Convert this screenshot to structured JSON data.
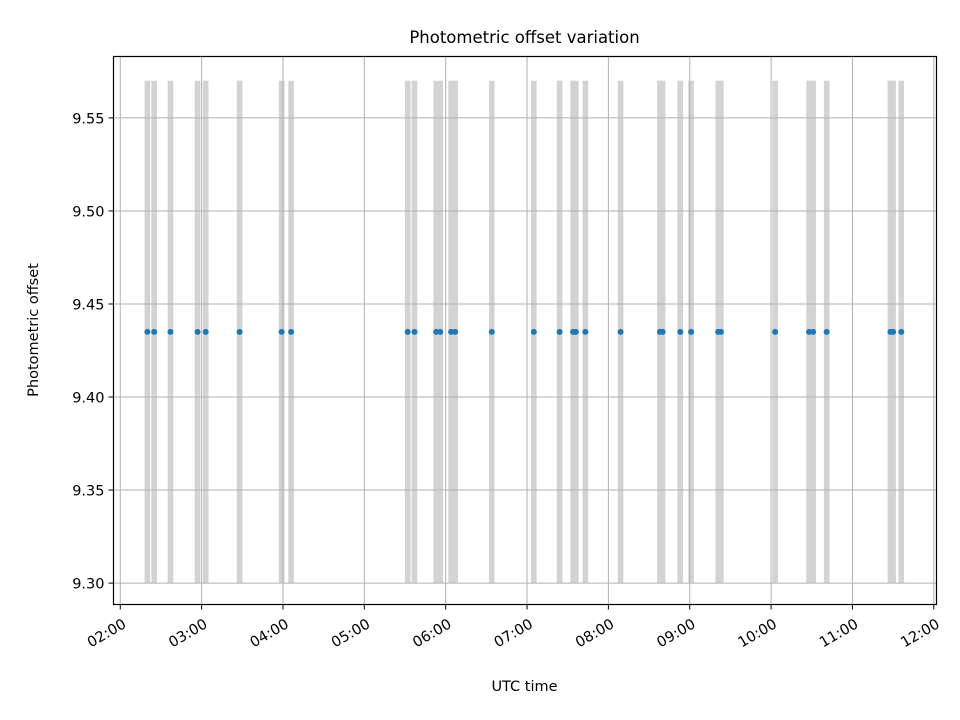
{
  "chart_data": {
    "type": "scatter",
    "title": "Photometric offset variation",
    "xlabel": "UTC time",
    "ylabel": "Photometric offset",
    "xlim": [
      "01:55",
      "12:02"
    ],
    "ylim": [
      9.2885,
      9.583
    ],
    "x_ticks": [
      "02:00",
      "03:00",
      "04:00",
      "05:00",
      "06:00",
      "07:00",
      "08:00",
      "09:00",
      "10:00",
      "11:00",
      "12:00"
    ],
    "y_ticks": [
      9.3,
      9.35,
      9.4,
      9.45,
      9.5,
      9.55
    ],
    "y_tick_labels": [
      "9.30",
      "9.35",
      "9.40",
      "9.45",
      "9.50",
      "9.55"
    ],
    "grid": true,
    "band_range": [
      9.3,
      9.57
    ],
    "series": [
      {
        "color": "#1f77b4",
        "x": [
          "02:20",
          "02:25",
          "02:37",
          "02:57",
          "03:03",
          "03:28",
          "03:59",
          "04:06",
          "05:32",
          "05:37",
          "05:53",
          "05:56",
          "06:04",
          "06:07",
          "06:34",
          "07:05",
          "07:24",
          "07:34",
          "07:36",
          "07:43",
          "08:09",
          "08:38",
          "08:40",
          "08:53",
          "09:01",
          "09:21",
          "09:23",
          "10:03",
          "10:28",
          "10:31",
          "10:41",
          "11:28",
          "11:30",
          "11:36"
        ],
        "y": [
          9.435,
          9.435,
          9.435,
          9.435,
          9.435,
          9.435,
          9.435,
          9.435,
          9.435,
          9.435,
          9.435,
          9.435,
          9.435,
          9.435,
          9.435,
          9.435,
          9.435,
          9.435,
          9.435,
          9.435,
          9.435,
          9.435,
          9.435,
          9.435,
          9.435,
          9.435,
          9.435,
          9.435,
          9.435,
          9.435,
          9.435,
          9.435,
          9.435,
          9.435
        ]
      }
    ],
    "band_color": "#d3d3d3",
    "grid_color": "#b0b0b0"
  }
}
